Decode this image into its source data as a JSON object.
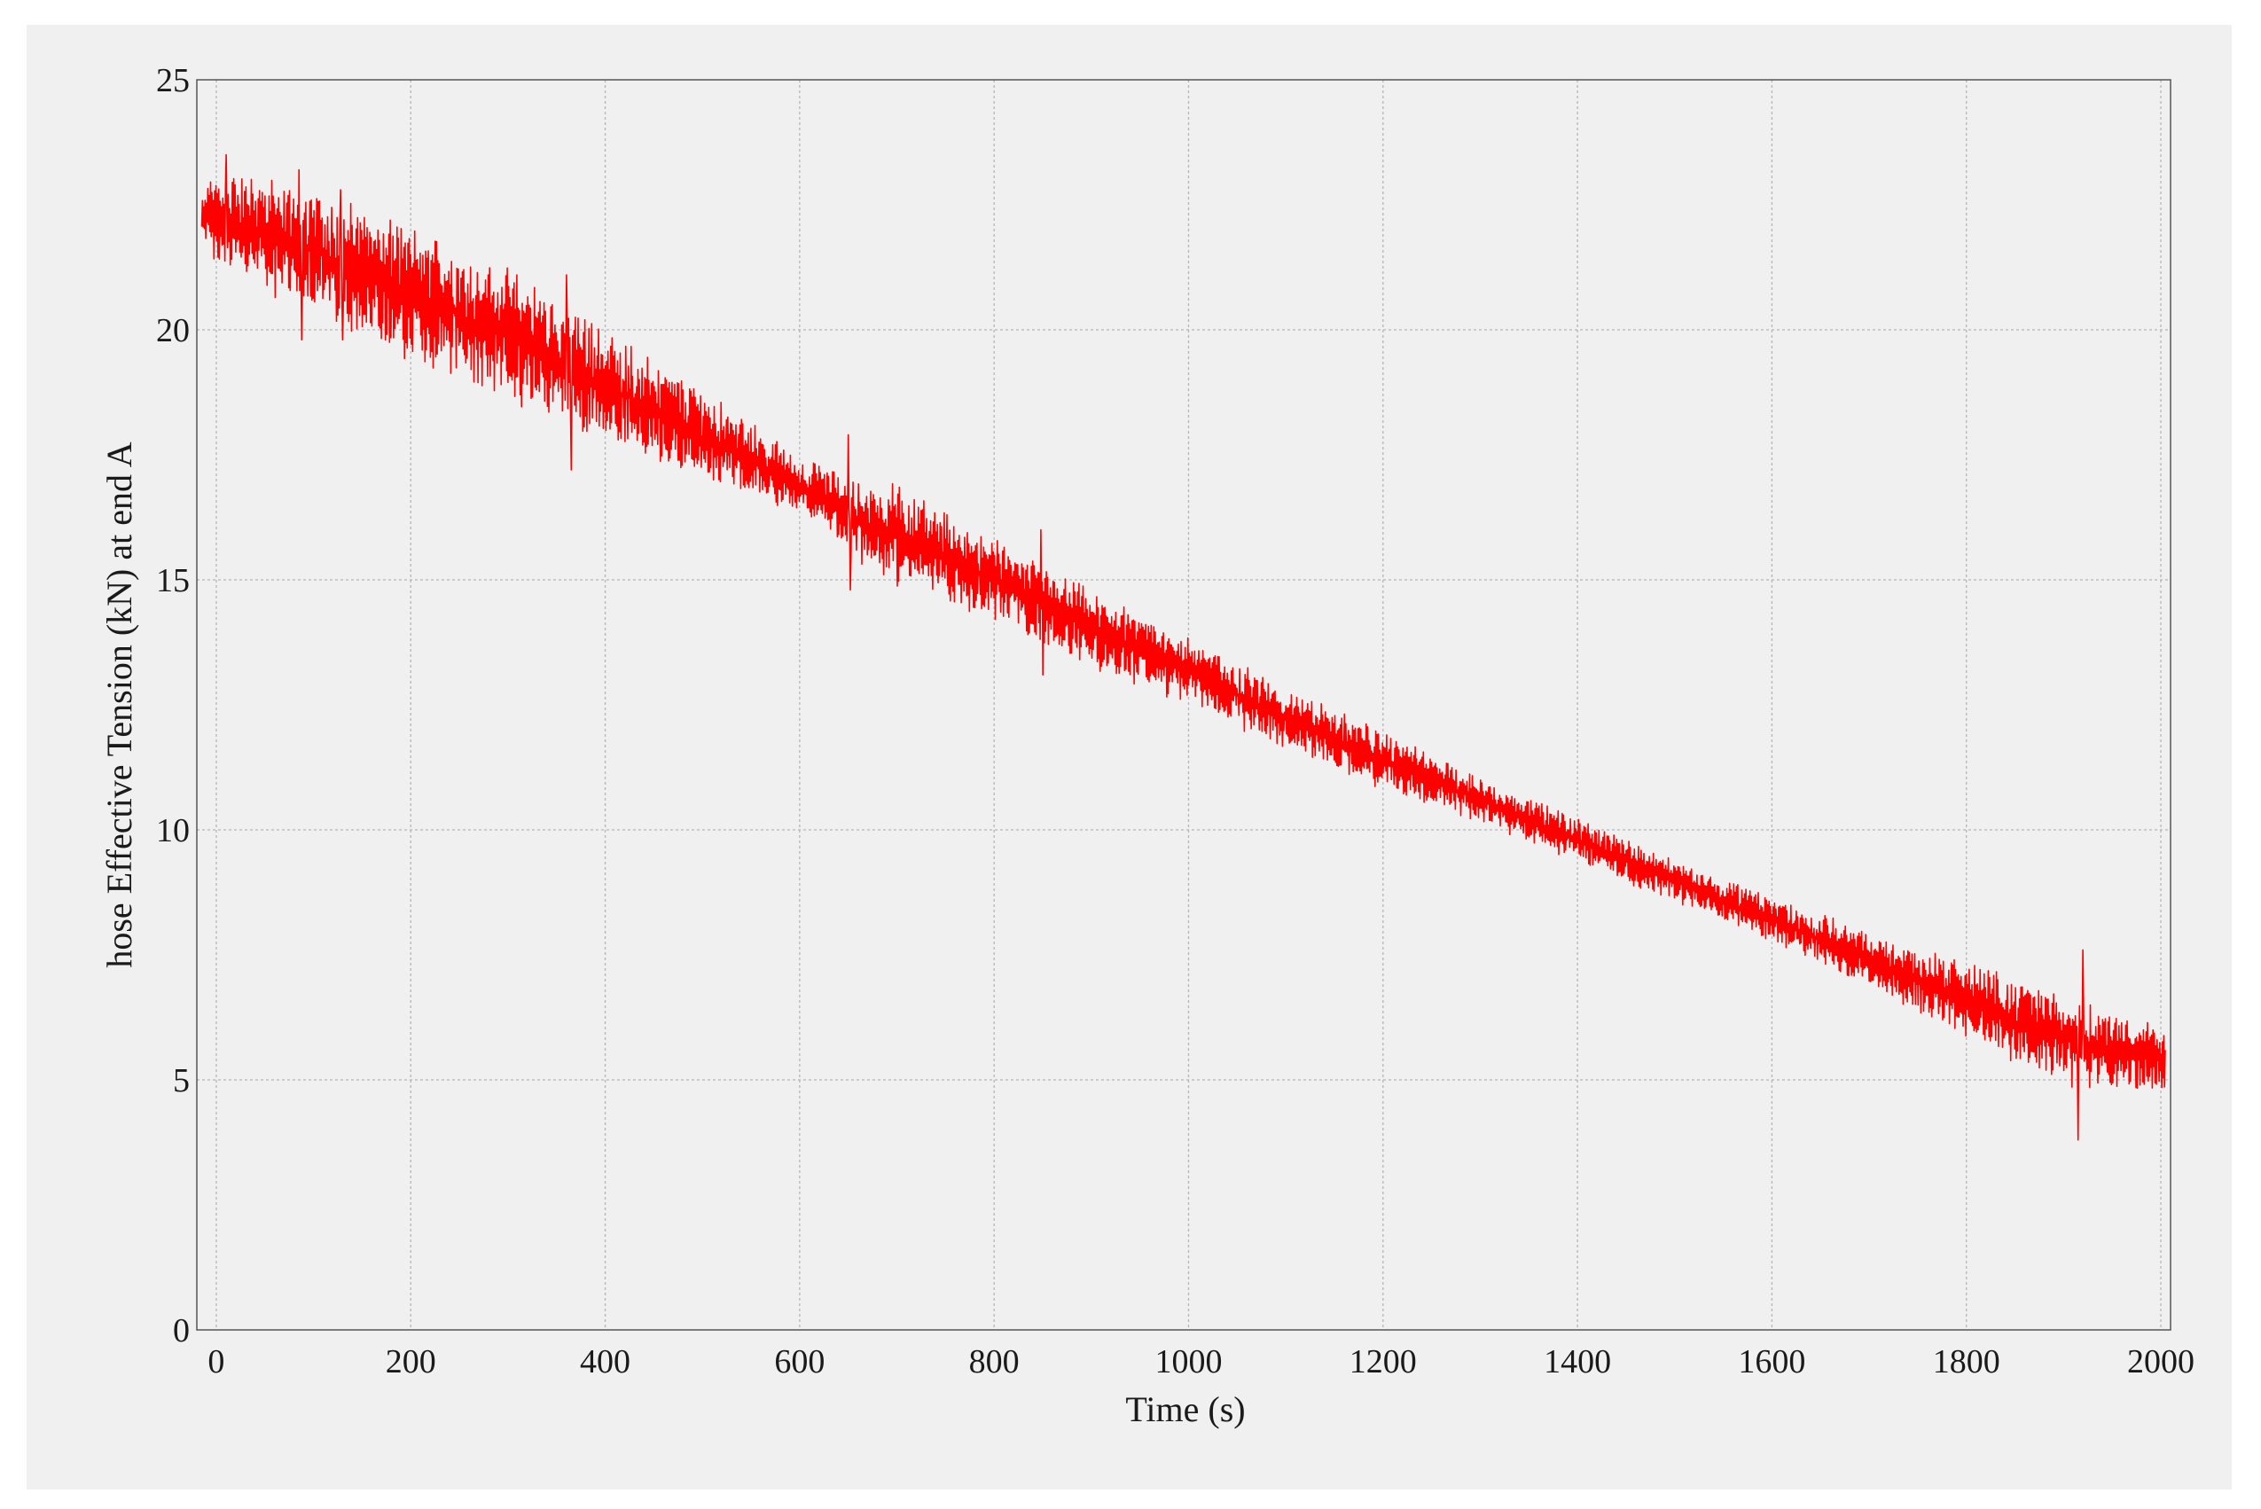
{
  "chart_data": {
    "type": "line",
    "title": "",
    "xlabel": "Time (s)",
    "ylabel": "hose Effective Tension (kN) at end A",
    "xlim": [
      -20,
      2010
    ],
    "ylim": [
      0,
      25
    ],
    "grid": true,
    "x_ticks": [
      {
        "value": 0,
        "label": "0"
      },
      {
        "value": 200,
        "label": "200"
      },
      {
        "value": 400,
        "label": "400"
      },
      {
        "value": 600,
        "label": "600"
      },
      {
        "value": 800,
        "label": "800"
      },
      {
        "value": 1000,
        "label": "1000"
      },
      {
        "value": 1200,
        "label": "1200"
      },
      {
        "value": 1400,
        "label": "1400"
      },
      {
        "value": 1600,
        "label": "1600"
      },
      {
        "value": 1800,
        "label": "1800"
      },
      {
        "value": 2000,
        "label": "2000"
      }
    ],
    "y_ticks": [
      {
        "value": 0,
        "label": "0"
      },
      {
        "value": 5,
        "label": "5"
      },
      {
        "value": 10,
        "label": "10"
      },
      {
        "value": 15,
        "label": "15"
      },
      {
        "value": 20,
        "label": "20"
      },
      {
        "value": 25,
        "label": "25"
      }
    ],
    "series": [
      {
        "color": "#ff0000",
        "trend_x": [
          -15,
          0,
          100,
          200,
          300,
          400,
          500,
          600,
          650,
          700,
          800,
          900,
          1000,
          1100,
          1200,
          1300,
          1400,
          1500,
          1600,
          1700,
          1800,
          1900,
          2005
        ],
        "trend_y": [
          22.3,
          22.2,
          21.6,
          20.7,
          19.9,
          18.9,
          17.9,
          16.9,
          16.3,
          15.9,
          15.0,
          14.0,
          13.2,
          12.2,
          11.4,
          10.6,
          9.8,
          9.0,
          8.2,
          7.4,
          6.6,
          5.8,
          5.4
        ],
        "amp_x": [
          -15,
          0,
          100,
          200,
          300,
          400,
          500,
          600,
          700,
          800,
          900,
          1000,
          1100,
          1200,
          1300,
          1400,
          1500,
          1600,
          1700,
          1800,
          1900,
          2005
        ],
        "amp_y": [
          0.3,
          0.9,
          1.1,
          1.2,
          1.2,
          1.0,
          0.8,
          0.5,
          0.9,
          0.7,
          0.7,
          0.6,
          0.6,
          0.5,
          0.4,
          0.4,
          0.4,
          0.4,
          0.5,
          0.7,
          0.8,
          0.6
        ],
        "spikes": [
          {
            "x": 10,
            "y": 23.5
          },
          {
            "x": 85,
            "y": 23.2
          },
          {
            "x": 88,
            "y": 19.8
          },
          {
            "x": 128,
            "y": 22.8
          },
          {
            "x": 130,
            "y": 19.8
          },
          {
            "x": 360,
            "y": 21.1
          },
          {
            "x": 365,
            "y": 17.2
          },
          {
            "x": 650,
            "y": 17.9
          },
          {
            "x": 652,
            "y": 14.8
          },
          {
            "x": 848,
            "y": 16.0
          },
          {
            "x": 850,
            "y": 13.1
          },
          {
            "x": 1920,
            "y": 7.6
          },
          {
            "x": 1915,
            "y": 3.8
          }
        ]
      }
    ]
  }
}
